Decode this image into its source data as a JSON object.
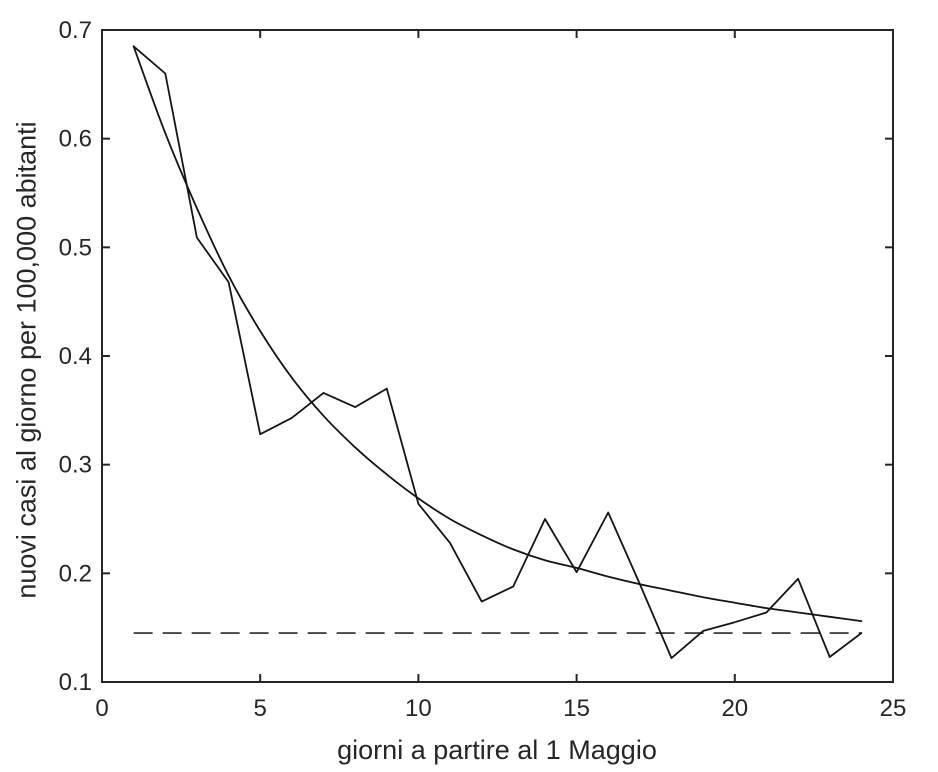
{
  "figure": {
    "background": "#ffffff",
    "axis_color": "#262626",
    "observed_color": "#141414",
    "fit_color": "#141414",
    "threshold_color": "#454545"
  },
  "chart_data": {
    "type": "line",
    "title": "",
    "xlabel": "giorni a partire al 1 Maggio",
    "ylabel": "nuovi casi al giorno per 100,000 abitanti",
    "xlim": [
      0,
      25
    ],
    "ylim": [
      0.1,
      0.7
    ],
    "x_ticks": [
      0,
      5,
      10,
      15,
      20,
      25
    ],
    "y_ticks": [
      0.1,
      0.2,
      0.3,
      0.4,
      0.5,
      0.6,
      0.7
    ],
    "grid": false,
    "box": true,
    "legend": null,
    "x": [
      1,
      2,
      3,
      4,
      5,
      6,
      7,
      8,
      9,
      10,
      11,
      12,
      13,
      14,
      15,
      16,
      17,
      18,
      19,
      20,
      21,
      22,
      23,
      24
    ],
    "series": [
      {
        "name": "observed",
        "style": "solid-jagged",
        "values": [
          0.685,
          0.66,
          0.509,
          0.468,
          0.328,
          0.343,
          0.366,
          0.353,
          0.37,
          0.264,
          0.228,
          0.174,
          0.188,
          0.25,
          0.201,
          0.256,
          0.19,
          0.122,
          0.147,
          0.155,
          0.164,
          0.195,
          0.123,
          0.145
        ]
      },
      {
        "name": "smoothed_fit",
        "style": "solid-smooth",
        "values": [
          0.685,
          0.605,
          0.536,
          0.474,
          0.423,
          0.38,
          0.345,
          0.316,
          0.291,
          0.269,
          0.25,
          0.235,
          0.222,
          0.212,
          0.205,
          0.197,
          0.19,
          0.184,
          0.178,
          0.173,
          0.168,
          0.164,
          0.16,
          0.156
        ]
      }
    ],
    "threshold_line": {
      "name": "threshold_dashed",
      "style": "dashed",
      "value": 0.145,
      "x_start": 1,
      "x_end": 24
    }
  }
}
